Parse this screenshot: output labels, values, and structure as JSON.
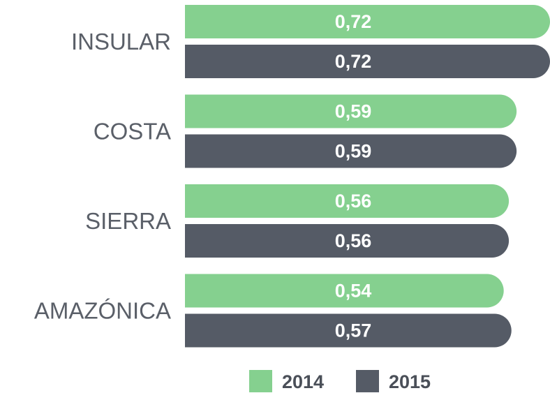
{
  "chart_data": {
    "type": "bar",
    "orientation": "horizontal",
    "categories": [
      "INSULAR",
      "COSTA",
      "SIERRA",
      "AMAZÓNICA"
    ],
    "series": [
      {
        "name": "2014",
        "color": "#85d08f",
        "values": [
          0.72,
          0.59,
          0.56,
          0.54
        ],
        "value_labels": [
          "0,72",
          "0,59",
          "0,56",
          "0,54"
        ]
      },
      {
        "name": "2015",
        "color": "#555b66",
        "values": [
          0.72,
          0.59,
          0.56,
          0.57
        ],
        "value_labels": [
          "0,72",
          "0,59",
          "0,56",
          "0,57"
        ]
      }
    ],
    "xlim": [
      -0.7,
      0.72
    ],
    "legend": "bottom"
  }
}
